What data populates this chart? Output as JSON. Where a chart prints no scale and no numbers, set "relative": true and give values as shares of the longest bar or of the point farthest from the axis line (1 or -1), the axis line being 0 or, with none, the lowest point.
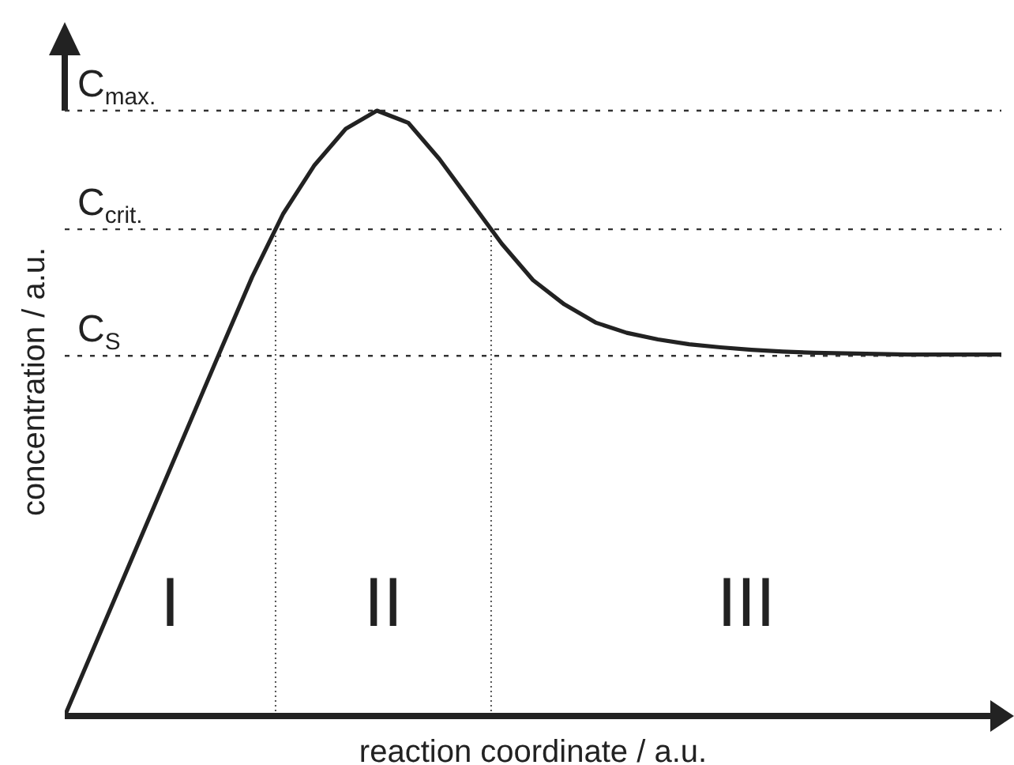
{
  "chart_data": {
    "type": "line",
    "relative": true,
    "xlabel": "reaction coordinate / a.u.",
    "ylabel": "concentration / a.u.",
    "categories": [
      null,
      null,
      null,
      null,
      null,
      null,
      null,
      null,
      null,
      null,
      null,
      null,
      null,
      null,
      null,
      null,
      null,
      null,
      null,
      null,
      null,
      null,
      null,
      null,
      null,
      null,
      null,
      null,
      null,
      null,
      null
    ],
    "marker": "none",
    "line_style": "solid",
    "series": [
      {
        "color": "#222222",
        "values": [
          0,
          0.121,
          0.242,
          0.363,
          0.484,
          0.605,
          0.725,
          0.83,
          0.91,
          0.97,
          1,
          0.98,
          0.92,
          0.85,
          0.78,
          0.72,
          0.68,
          0.65,
          0.633,
          0.622,
          0.614,
          0.609,
          0.605,
          0.602,
          0.6,
          0.599,
          0.598,
          0.597,
          0.597,
          0.597,
          0.597
        ]
      }
    ],
    "ref_lines": [
      {
        "axis": "y",
        "value": 1,
        "label": "C$_{max.}$",
        "line_style": "dashed",
        "color": "#333333"
      },
      {
        "axis": "y",
        "value": 0.804,
        "label": "C$_{crit.}$",
        "line_style": "dashed",
        "color": "#333333"
      },
      {
        "axis": "y",
        "value": 0.595,
        "label": "C$_{S}$",
        "line_style": "dashed",
        "color": "#333333"
      }
    ],
    "annotations": [
      "I",
      "II",
      "III"
    ]
  }
}
